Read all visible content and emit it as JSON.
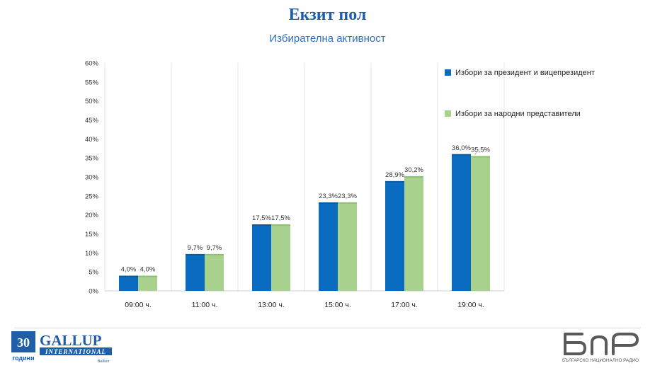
{
  "header": {
    "title": "Екзит пол",
    "subtitle": "Избирателна активност"
  },
  "chart_data": {
    "type": "bar",
    "categories": [
      "09:00 ч.",
      "11:00 ч.",
      "13:00 ч.",
      "15:00 ч.",
      "17:00 ч.",
      "19:00 ч."
    ],
    "series": [
      {
        "name": "Избори за президент и вицепрезидент",
        "color": "#0a6cc0",
        "values": [
          4.0,
          9.7,
          17.5,
          23.3,
          28.9,
          36.0
        ],
        "labels": [
          "4,0%",
          "9,7%",
          "17,5%",
          "23,3%",
          "28,9%",
          "36,0%"
        ]
      },
      {
        "name": "Избори за народни представители",
        "color": "#a8d18d",
        "values": [
          4.0,
          9.7,
          17.5,
          23.3,
          30.2,
          35.5
        ],
        "labels": [
          "4,0%",
          "9,7%",
          "17,5%",
          "23,3%",
          "30,2%",
          "35,5%"
        ]
      }
    ],
    "ylim": [
      0,
      60
    ],
    "yticks": [
      "0%",
      "5%",
      "10%",
      "15%",
      "20%",
      "25%",
      "30%",
      "35%",
      "40%",
      "45%",
      "50%",
      "55%",
      "60%"
    ],
    "xlabel": "",
    "ylabel": "",
    "grid": "vertical separators between categories",
    "legend": "right"
  },
  "footer": {
    "gallup": {
      "years_number": "30",
      "years_word": "години",
      "brand_top": "GALLUP",
      "brand_band": "INTERNATIONAL",
      "brand_region": "Balkan"
    },
    "bnr": {
      "logo_text": "БНР",
      "tagline": "БЪЛГАРСКО НАЦИОНАЛНО РАДИО"
    }
  }
}
